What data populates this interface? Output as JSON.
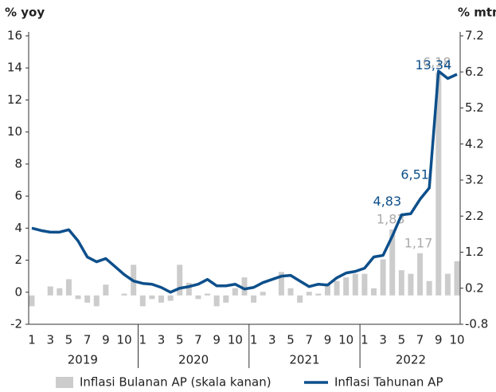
{
  "chart_data": {
    "type": "bar-line",
    "y_label": "% yoy",
    "y2_label": "% mtm",
    "categories": [
      "1",
      null,
      "3",
      null,
      "5",
      null,
      "7",
      null,
      "9",
      null,
      "10",
      null,
      "1",
      null,
      "3",
      null,
      "5",
      null,
      "7",
      null,
      "9",
      null,
      "10",
      null,
      "1",
      null,
      "3",
      null,
      "5",
      null,
      "7",
      null,
      "9",
      null,
      "10",
      null,
      "1",
      null,
      "3",
      null,
      "5",
      null,
      "7",
      null,
      "9",
      null,
      "10"
    ],
    "years": [
      "2019",
      "2020",
      "2021",
      "2022"
    ],
    "ylim": [
      -2,
      16
    ],
    "yticks": [
      -2,
      0,
      2,
      4,
      6,
      8,
      10,
      12,
      14,
      16
    ],
    "y2lim": [
      -0.8,
      7.2
    ],
    "y2ticks": [
      -0.8,
      0.2,
      1.2,
      2.2,
      3.2,
      4.2,
      5.2,
      6.2,
      7.2
    ],
    "series": [
      {
        "name": "Inflasi Bulanan AP (skala kanan)",
        "type": "bar",
        "axis": "y2",
        "color": "#cccccc",
        "values": [
          -0.3,
          0.0,
          0.25,
          0.2,
          0.45,
          -0.1,
          -0.2,
          -0.3,
          0.3,
          0.0,
          0.05,
          0.85,
          -0.3,
          -0.1,
          -0.2,
          -0.15,
          0.85,
          0.35,
          -0.1,
          0.05,
          -0.3,
          -0.2,
          0.2,
          0.5,
          -0.2,
          0.1,
          0.0,
          0.65,
          0.2,
          -0.2,
          0.1,
          0.05,
          0.3,
          0.4,
          0.5,
          0.6,
          0.6,
          0.2,
          1.0,
          1.83,
          0.7,
          0.6,
          1.17,
          0.4,
          6.18,
          0.6,
          0.95
        ],
        "value_labels": [
          null,
          null,
          null,
          null,
          null,
          null,
          null,
          null,
          null,
          null,
          null,
          null,
          null,
          null,
          null,
          null,
          null,
          null,
          null,
          null,
          null,
          null,
          null,
          null,
          null,
          null,
          null,
          null,
          null,
          null,
          null,
          null,
          null,
          null,
          null,
          null,
          null,
          null,
          null,
          "1,83",
          null,
          null,
          "1,17",
          null,
          "6,18",
          null,
          null
        ]
      },
      {
        "name": "Inflasi Tahunan AP",
        "type": "line",
        "color": "#0d4f8b",
        "values": [
          4.0,
          3.85,
          3.75,
          3.75,
          3.9,
          3.2,
          2.2,
          1.9,
          2.1,
          1.6,
          1.1,
          0.7,
          0.55,
          0.5,
          0.3,
          0.0,
          0.25,
          0.35,
          0.5,
          0.8,
          0.4,
          0.4,
          0.5,
          0.2,
          0.3,
          0.6,
          0.8,
          1.0,
          1.05,
          0.7,
          0.35,
          0.5,
          0.45,
          0.9,
          1.2,
          1.3,
          1.5,
          2.2,
          2.3,
          3.5,
          4.83,
          4.9,
          5.8,
          6.51,
          13.8,
          13.34,
          13.6
        ],
        "value_labels": [
          null,
          null,
          null,
          null,
          null,
          null,
          null,
          null,
          null,
          null,
          null,
          null,
          null,
          null,
          null,
          null,
          null,
          null,
          null,
          null,
          null,
          null,
          null,
          null,
          null,
          null,
          null,
          null,
          null,
          null,
          null,
          null,
          null,
          null,
          null,
          null,
          null,
          null,
          null,
          null,
          "4,83",
          null,
          null,
          "6,51",
          null,
          "13,34",
          null
        ]
      }
    ],
    "legend": "bottom"
  }
}
